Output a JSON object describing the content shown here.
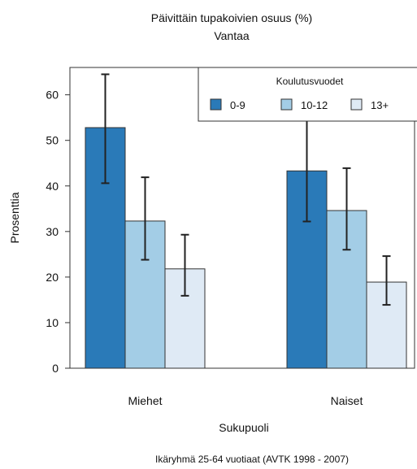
{
  "chart_data": {
    "type": "bar",
    "title": "Päivittäin tupakoivien osuus (%)",
    "subtitle": "Vantaa",
    "xlabel": "Sukupuoli",
    "ylabel": "Prosenttia",
    "caption": "Ikäryhmä 25-64 vuotiaat (AVTK 1998 - 2007)",
    "categories": [
      "Miehet",
      "Naiset"
    ],
    "ylim": [
      0,
      66
    ],
    "yticks": [
      0,
      10,
      20,
      30,
      40,
      50,
      60
    ],
    "legend": {
      "title": "Koulutusvuodet",
      "position": "top-right"
    },
    "series": [
      {
        "name": "0-9",
        "color": "#2a7ab8",
        "values": [
          52.8,
          43.3
        ],
        "err_low": [
          40.6,
          32.2
        ],
        "err_high": [
          64.5,
          55.0
        ]
      },
      {
        "name": "10-12",
        "color": "#a3cde6",
        "values": [
          32.3,
          34.6
        ],
        "err_low": [
          23.8,
          26.0
        ],
        "err_high": [
          41.9,
          43.9
        ]
      },
      {
        "name": "13+",
        "color": "#dfeaf5",
        "values": [
          21.8,
          18.9
        ],
        "err_low": [
          15.9,
          13.9
        ],
        "err_high": [
          29.3,
          24.6
        ]
      }
    ]
  }
}
